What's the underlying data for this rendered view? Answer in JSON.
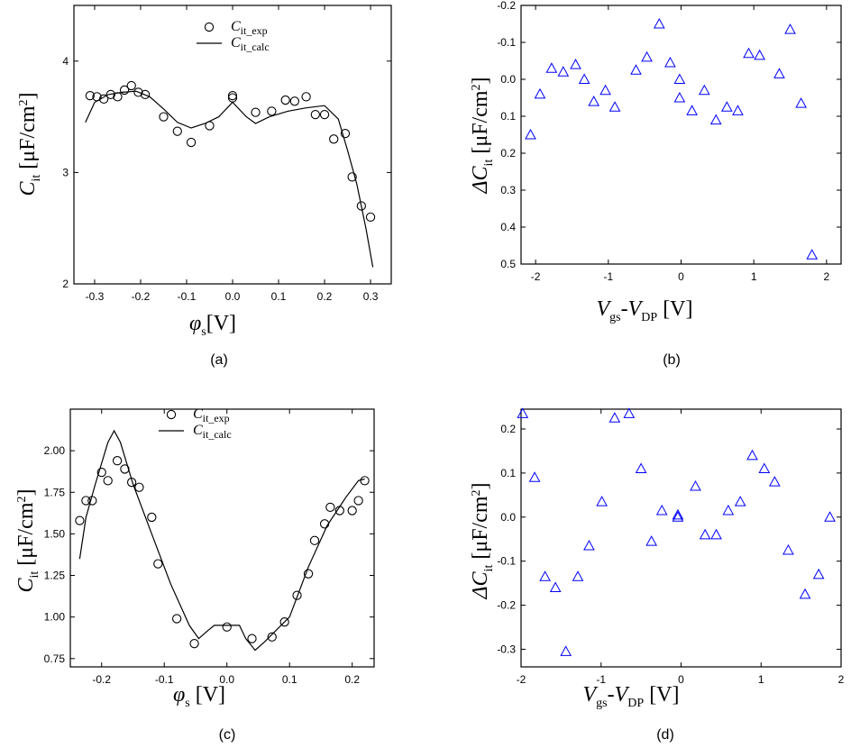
{
  "colors": {
    "axis": "#000000",
    "exp_marker": "#000000",
    "calc_line": "#000000",
    "delta_marker": "#0000ff"
  },
  "chart_data": [
    {
      "id": "a",
      "type": "scatter",
      "caption": "(a)",
      "ylabel_main": "C",
      "ylabel_sub": "it",
      "ylabel_unit": " [μF/cm",
      "ylabel_sup": "2",
      "ylabel_close": "]",
      "xlabel_main": "φ",
      "xlabel_sub": "s",
      "xlabel_unit": "[V]",
      "xlim": [
        -0.345,
        0.345
      ],
      "ylim": [
        2.0,
        4.5
      ],
      "xticks": [
        -0.3,
        -0.2,
        -0.1,
        0.0,
        0.1,
        0.2,
        0.3
      ],
      "xtick_labels": [
        "-0.3",
        "-0.2",
        "-0.1",
        "0.0",
        "0.1",
        "0.2",
        "0.3"
      ],
      "yticks": [
        2,
        3,
        4
      ],
      "ytick_labels": [
        "2",
        "3",
        "4"
      ],
      "legend": [
        {
          "main": "C",
          "sub": "it_exp",
          "kind": "marker"
        },
        {
          "main": "C",
          "sub": "it_calc",
          "kind": "line"
        }
      ],
      "exp": [
        [
          -0.31,
          3.69
        ],
        [
          -0.295,
          3.68
        ],
        [
          -0.28,
          3.66
        ],
        [
          -0.265,
          3.7
        ],
        [
          -0.25,
          3.68
        ],
        [
          -0.235,
          3.74
        ],
        [
          -0.22,
          3.78
        ],
        [
          -0.205,
          3.72
        ],
        [
          -0.19,
          3.7
        ],
        [
          -0.15,
          3.5
        ],
        [
          -0.12,
          3.37
        ],
        [
          -0.09,
          3.27
        ],
        [
          -0.05,
          3.42
        ],
        [
          0.0,
          3.67
        ],
        [
          0.0,
          3.69
        ],
        [
          0.05,
          3.54
        ],
        [
          0.085,
          3.55
        ],
        [
          0.115,
          3.65
        ],
        [
          0.135,
          3.64
        ],
        [
          0.16,
          3.68
        ],
        [
          0.18,
          3.52
        ],
        [
          0.2,
          3.52
        ],
        [
          0.22,
          3.3
        ],
        [
          0.245,
          3.35
        ],
        [
          0.26,
          2.96
        ],
        [
          0.28,
          2.7
        ],
        [
          0.3,
          2.6
        ]
      ],
      "calc": [
        [
          -0.32,
          3.45
        ],
        [
          -0.3,
          3.63
        ],
        [
          -0.27,
          3.7
        ],
        [
          -0.24,
          3.72
        ],
        [
          -0.21,
          3.73
        ],
        [
          -0.18,
          3.68
        ],
        [
          -0.15,
          3.57
        ],
        [
          -0.12,
          3.45
        ],
        [
          -0.09,
          3.4
        ],
        [
          -0.06,
          3.44
        ],
        [
          -0.03,
          3.5
        ],
        [
          0.0,
          3.63
        ],
        [
          0.03,
          3.5
        ],
        [
          0.05,
          3.44
        ],
        [
          0.08,
          3.5
        ],
        [
          0.12,
          3.55
        ],
        [
          0.16,
          3.58
        ],
        [
          0.2,
          3.6
        ],
        [
          0.23,
          3.48
        ],
        [
          0.25,
          3.2
        ],
        [
          0.27,
          2.9
        ],
        [
          0.29,
          2.5
        ],
        [
          0.305,
          2.15
        ]
      ]
    },
    {
      "id": "b",
      "type": "scatter",
      "caption": "(b)",
      "ylabel_main": "ΔC",
      "ylabel_sub": "it",
      "ylabel_unit": " [μF/cm",
      "ylabel_sup": "2",
      "ylabel_close": "]",
      "xlabel_main": "V",
      "xlabel_sub": "gs",
      "xlabel_mid": "-V",
      "xlabel_sub2": "DP",
      "xlabel_unit": " [V]",
      "xlim": [
        -2.2,
        2.2
      ],
      "ylim": [
        -0.2,
        0.5
      ],
      "y_inverted": true,
      "xticks": [
        -2,
        -1,
        0,
        1,
        2
      ],
      "xtick_labels": [
        "-2",
        "-1",
        "0",
        "1",
        "2"
      ],
      "yticks": [
        -0.2,
        -0.1,
        0.0,
        0.1,
        0.2,
        0.3,
        0.4,
        0.5
      ],
      "ytick_labels": [
        "-0.2",
        "-0.1",
        "0.0",
        "0.1",
        "0.2",
        "0.3",
        "0.4",
        "0.5"
      ],
      "points": [
        [
          -2.07,
          0.15
        ],
        [
          -1.94,
          0.04
        ],
        [
          -1.78,
          -0.03
        ],
        [
          -1.62,
          -0.02
        ],
        [
          -1.45,
          -0.04
        ],
        [
          -1.33,
          0.0
        ],
        [
          -1.2,
          0.06
        ],
        [
          -1.04,
          0.03
        ],
        [
          -0.91,
          0.075
        ],
        [
          -0.62,
          -0.025
        ],
        [
          -0.47,
          -0.06
        ],
        [
          -0.3,
          -0.15
        ],
        [
          -0.15,
          -0.045
        ],
        [
          -0.02,
          0.0
        ],
        [
          -0.02,
          0.05
        ],
        [
          0.15,
          0.085
        ],
        [
          0.32,
          0.03
        ],
        [
          0.48,
          0.11
        ],
        [
          0.63,
          0.075
        ],
        [
          0.78,
          0.085
        ],
        [
          0.93,
          -0.07
        ],
        [
          1.08,
          -0.065
        ],
        [
          1.35,
          -0.015
        ],
        [
          1.5,
          -0.135
        ],
        [
          1.65,
          0.065
        ],
        [
          1.8,
          0.475
        ]
      ]
    },
    {
      "id": "c",
      "type": "scatter",
      "caption": "(c)",
      "ylabel_main": "C",
      "ylabel_sub": "it",
      "ylabel_unit": " [μF/cm",
      "ylabel_sup": "2",
      "ylabel_close": "]",
      "xlabel_main": "φ",
      "xlabel_sub": "s",
      "xlabel_unit": " [V]",
      "xlim": [
        -0.25,
        0.235
      ],
      "ylim": [
        0.7,
        2.25
      ],
      "xticks": [
        -0.2,
        -0.1,
        0.0,
        0.1,
        0.2
      ],
      "xtick_labels": [
        "-0.2",
        "-0.1",
        "0.0",
        "0.1",
        "0.2"
      ],
      "yticks": [
        0.75,
        1.0,
        1.25,
        1.5,
        1.75,
        2.0
      ],
      "ytick_labels": [
        "0.75",
        "1.00",
        "1.25",
        "1.50",
        "1.75",
        "2.00"
      ],
      "legend": [
        {
          "main": "C",
          "sub": "it_exp",
          "kind": "marker"
        },
        {
          "main": "C",
          "sub": "it_calc",
          "kind": "line"
        }
      ],
      "exp": [
        [
          -0.235,
          1.58
        ],
        [
          -0.225,
          1.7
        ],
        [
          -0.215,
          1.7
        ],
        [
          -0.2,
          1.87
        ],
        [
          -0.19,
          1.82
        ],
        [
          -0.175,
          1.94
        ],
        [
          -0.163,
          1.89
        ],
        [
          -0.152,
          1.81
        ],
        [
          -0.14,
          1.78
        ],
        [
          -0.12,
          1.6
        ],
        [
          -0.11,
          1.32
        ],
        [
          -0.08,
          0.99
        ],
        [
          -0.052,
          0.84
        ],
        [
          0.0,
          0.94
        ],
        [
          0.04,
          0.87
        ],
        [
          0.072,
          0.88
        ],
        [
          0.092,
          0.97
        ],
        [
          0.112,
          1.13
        ],
        [
          0.13,
          1.26
        ],
        [
          0.14,
          1.46
        ],
        [
          0.156,
          1.56
        ],
        [
          0.165,
          1.66
        ],
        [
          0.18,
          1.64
        ],
        [
          0.2,
          1.64
        ],
        [
          0.21,
          1.7
        ],
        [
          0.22,
          1.82
        ]
      ],
      "calc": [
        [
          -0.235,
          1.35
        ],
        [
          -0.225,
          1.6
        ],
        [
          -0.21,
          1.8
        ],
        [
          -0.19,
          2.05
        ],
        [
          -0.18,
          2.12
        ],
        [
          -0.17,
          2.05
        ],
        [
          -0.15,
          1.8
        ],
        [
          -0.12,
          1.5
        ],
        [
          -0.09,
          1.2
        ],
        [
          -0.06,
          0.95
        ],
        [
          -0.045,
          0.87
        ],
        [
          -0.03,
          0.92
        ],
        [
          -0.02,
          0.95
        ],
        [
          0.0,
          0.95
        ],
        [
          0.02,
          0.95
        ],
        [
          0.03,
          0.87
        ],
        [
          0.045,
          0.8
        ],
        [
          0.06,
          0.85
        ],
        [
          0.1,
          1.0
        ],
        [
          0.13,
          1.3
        ],
        [
          0.16,
          1.55
        ],
        [
          0.19,
          1.72
        ],
        [
          0.21,
          1.82
        ],
        [
          0.22,
          1.83
        ]
      ]
    },
    {
      "id": "d",
      "type": "scatter",
      "caption": "(d)",
      "ylabel_main": "ΔC",
      "ylabel_sub": "it",
      "ylabel_unit": " [μF/cm",
      "ylabel_sup": "2",
      "ylabel_close": "]",
      "xlabel_main": "V",
      "xlabel_sub": "gs",
      "xlabel_mid": "-V",
      "xlabel_sub2": "DP",
      "xlabel_unit": " [V]",
      "xlim": [
        -2.0,
        2.0
      ],
      "ylim": [
        -0.34,
        0.245
      ],
      "xticks": [
        -2,
        -1,
        0,
        1,
        2
      ],
      "xtick_labels": [
        "-2",
        "-1",
        "0",
        "1",
        "2"
      ],
      "yticks": [
        -0.3,
        -0.2,
        -0.1,
        0.0,
        0.1,
        0.2
      ],
      "ytick_labels": [
        "-0.3",
        "-0.2",
        "-0.1",
        "0.0",
        "0.1",
        "0.2"
      ],
      "points": [
        [
          -1.98,
          0.235
        ],
        [
          -1.83,
          0.09
        ],
        [
          -1.7,
          -0.135
        ],
        [
          -1.57,
          -0.16
        ],
        [
          -1.44,
          -0.305
        ],
        [
          -1.29,
          -0.135
        ],
        [
          -1.15,
          -0.065
        ],
        [
          -0.99,
          0.035
        ],
        [
          -0.83,
          0.225
        ],
        [
          -0.65,
          0.235
        ],
        [
          -0.5,
          0.11
        ],
        [
          -0.37,
          -0.055
        ],
        [
          -0.24,
          0.015
        ],
        [
          -0.04,
          0.0
        ],
        [
          -0.04,
          0.005
        ],
        [
          0.18,
          0.07
        ],
        [
          0.3,
          -0.04
        ],
        [
          0.44,
          -0.04
        ],
        [
          0.59,
          0.015
        ],
        [
          0.74,
          0.035
        ],
        [
          0.89,
          0.14
        ],
        [
          1.04,
          0.11
        ],
        [
          1.17,
          0.08
        ],
        [
          1.34,
          -0.075
        ],
        [
          1.55,
          -0.175
        ],
        [
          1.72,
          -0.13
        ],
        [
          1.86,
          0.0
        ]
      ]
    }
  ]
}
